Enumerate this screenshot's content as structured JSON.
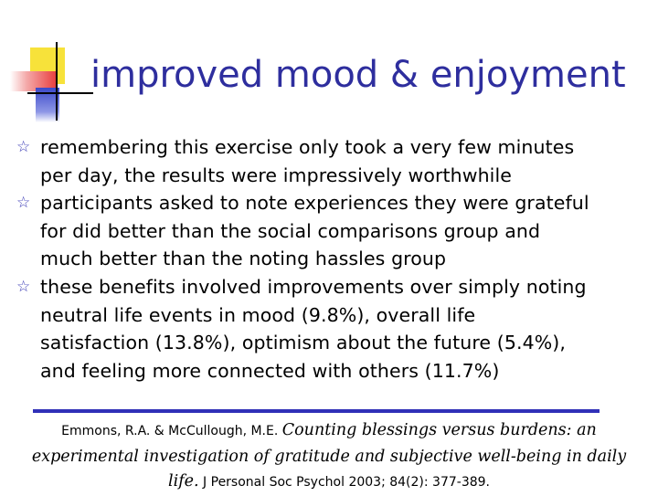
{
  "title": "improved mood & enjoyment",
  "bullets": [
    {
      "icon": "star-bullet-icon",
      "text": "remembering this exercise only took a very few minutes\nper day, the results were impressively worthwhile"
    },
    {
      "icon": "star-bullet-icon",
      "text": "participants asked to note experiences they were grateful\nfor did better than the social comparisons group and\nmuch better than the noting hassles group"
    },
    {
      "icon": "star-bullet-icon",
      "text": "these benefits involved improvements over simply noting\nneutral life events in mood (9.8%), overall life\nsatisfaction (13.8%), optimism about the future (5.4%),\nand feeling more connected with others (11.7%)"
    }
  ],
  "citation": {
    "authors": "Emmons, R.A. & McCullough, M.E. ",
    "title_line1": "Counting blessings versus burdens: an",
    "title_line2": "experimental investigation of gratitude and subjective well-being in daily",
    "title_line3": "life.",
    "journal": " J Personal Soc Psychol 2003; 84(2): 377-389."
  },
  "colors": {
    "title": "#2e2e9e",
    "bullet": "#3a3ab5",
    "rule": "#3030b8",
    "accent_yellow": "#f7e23a",
    "accent_red": "#e83a3a",
    "accent_blue": "#3b49c9"
  }
}
